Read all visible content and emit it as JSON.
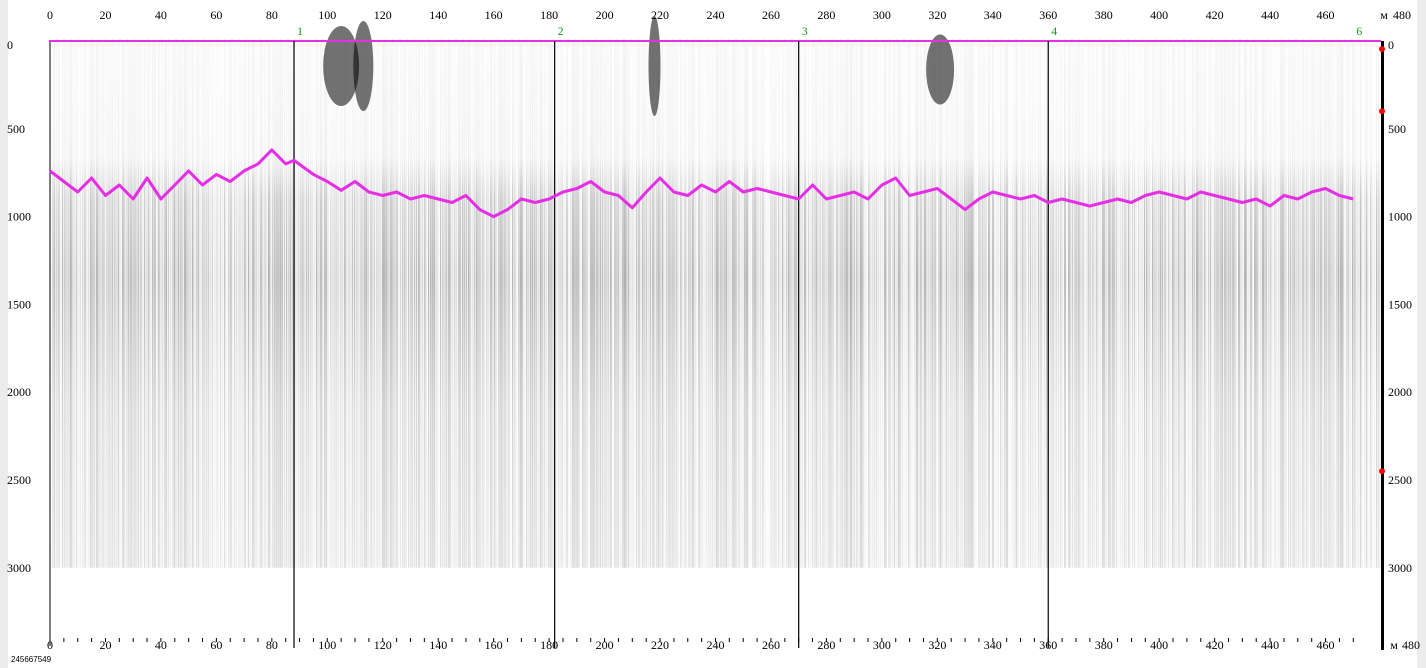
{
  "window": {
    "footer_id": "245667549",
    "title": ""
  },
  "units": {
    "top_right": "м",
    "bottom_right": "м"
  },
  "colors": {
    "trace": "#e62ee6",
    "marker": "#ff0000",
    "label_green": "#14a014",
    "axis": "#000000",
    "background": "#ffffff"
  },
  "chart_data": {
    "type": "heatmap",
    "title": "",
    "xlabel": "",
    "ylabel": "",
    "x_unit": "м",
    "x_range": [
      0,
      480
    ],
    "x_ticks": [
      0,
      20,
      40,
      60,
      80,
      100,
      120,
      140,
      160,
      180,
      200,
      220,
      240,
      260,
      280,
      300,
      320,
      340,
      360,
      380,
      400,
      420,
      440,
      460,
      480
    ],
    "y_range": [
      0,
      3400
    ],
    "y_ticks": [
      0,
      500,
      1000,
      1500,
      2000,
      2500,
      3000
    ],
    "data_extent_y": 3000,
    "grid": false,
    "section_markers": [
      {
        "label": "1",
        "x": 88
      },
      {
        "label": "2",
        "x": 182
      },
      {
        "label": "3",
        "x": 270
      },
      {
        "label": "4",
        "x": 360
      },
      {
        "label": "6",
        "x": 470
      }
    ],
    "right_edge_markers_y": [
      0,
      400,
      2450
    ],
    "series": [
      {
        "type": "line",
        "x": [
          0,
          5,
          10,
          15,
          20,
          25,
          30,
          35,
          40,
          45,
          50,
          55,
          60,
          65,
          70,
          75,
          80,
          85,
          88,
          95,
          100,
          105,
          110,
          115,
          120,
          125,
          130,
          135,
          140,
          145,
          150,
          155,
          160,
          165,
          170,
          175,
          180,
          185,
          190,
          195,
          200,
          205,
          210,
          215,
          220,
          225,
          230,
          235,
          240,
          245,
          250,
          255,
          260,
          265,
          270,
          275,
          280,
          285,
          290,
          295,
          300,
          305,
          310,
          315,
          320,
          325,
          330,
          335,
          340,
          345,
          350,
          355,
          360,
          365,
          370,
          375,
          380,
          385,
          390,
          395,
          400,
          405,
          410,
          415,
          420,
          425,
          430,
          435,
          440,
          445,
          450,
          455,
          460,
          465,
          470
        ],
        "y": [
          740,
          800,
          860,
          780,
          880,
          820,
          900,
          780,
          900,
          820,
          740,
          820,
          760,
          800,
          740,
          700,
          620,
          700,
          680,
          760,
          800,
          850,
          800,
          860,
          880,
          860,
          900,
          880,
          900,
          920,
          880,
          960,
          1000,
          960,
          900,
          920,
          900,
          860,
          840,
          800,
          860,
          880,
          950,
          860,
          780,
          860,
          880,
          820,
          860,
          800,
          860,
          840,
          860,
          880,
          900,
          820,
          900,
          880,
          860,
          900,
          820,
          780,
          880,
          860,
          840,
          900,
          960,
          900,
          860,
          880,
          900,
          880,
          920,
          900,
          920,
          940,
          920,
          900,
          920,
          880,
          860,
          880,
          900,
          860,
          880,
          900,
          920,
          900,
          940,
          880,
          900,
          860,
          840,
          880,
          900
        ]
      }
    ]
  }
}
